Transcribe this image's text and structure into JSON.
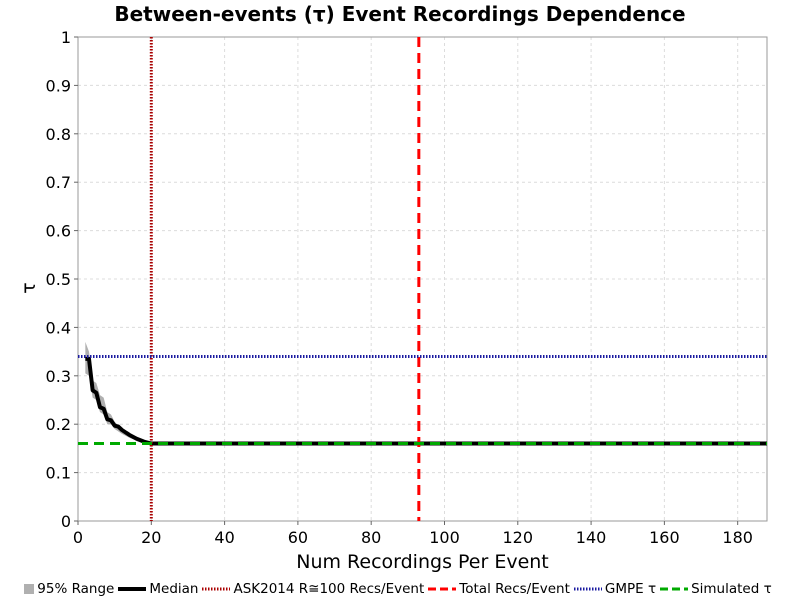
{
  "chart_data": {
    "type": "line",
    "title": "Between-events (τ) Event Recordings Dependence",
    "xlabel": "Num Recordings Per Event",
    "ylabel": "τ",
    "xlim": [
      0,
      188
    ],
    "ylim": [
      0,
      1
    ],
    "xticks": [
      0,
      20,
      40,
      60,
      80,
      100,
      120,
      140,
      160,
      180
    ],
    "yticks": [
      0,
      0.1,
      0.2,
      0.3,
      0.4,
      0.5,
      0.6,
      0.7,
      0.8,
      0.9,
      1
    ],
    "grid": true,
    "legend_position": "bottom",
    "series": [
      {
        "name": "95% Range",
        "kind": "band",
        "color": "#b0b0b0",
        "x": [
          2,
          3,
          4,
          5,
          6,
          7,
          8,
          9,
          10,
          12,
          14,
          16,
          18,
          20,
          30,
          60,
          93,
          120,
          188
        ],
        "lower": [
          0.305,
          0.3,
          0.255,
          0.25,
          0.225,
          0.22,
          0.2,
          0.2,
          0.19,
          0.18,
          0.172,
          0.166,
          0.161,
          0.158,
          0.158,
          0.158,
          0.158,
          0.158,
          0.158
        ],
        "upper": [
          0.37,
          0.35,
          0.29,
          0.285,
          0.26,
          0.255,
          0.225,
          0.22,
          0.205,
          0.19,
          0.18,
          0.172,
          0.166,
          0.162,
          0.162,
          0.162,
          0.162,
          0.162,
          0.162
        ]
      },
      {
        "name": "Median",
        "kind": "line",
        "color": "#000000",
        "x": [
          2,
          3,
          4,
          5,
          6,
          7,
          8,
          9,
          10,
          11,
          12,
          14,
          16,
          18,
          20,
          40,
          60,
          93,
          120,
          188
        ],
        "y": [
          0.335,
          0.335,
          0.27,
          0.265,
          0.235,
          0.232,
          0.21,
          0.208,
          0.197,
          0.195,
          0.188,
          0.178,
          0.17,
          0.164,
          0.16,
          0.16,
          0.16,
          0.16,
          0.16,
          0.16
        ]
      },
      {
        "name": "ASK2014 R≅100 Recs/Event",
        "kind": "vline",
        "color": "#aa0000",
        "x": 20
      },
      {
        "name": "Total Recs/Event",
        "kind": "vline",
        "color": "#ff0000",
        "x": 93
      },
      {
        "name": "GMPE τ",
        "kind": "hline",
        "color": "#1a1aa0",
        "y": 0.34
      },
      {
        "name": "Simulated τ",
        "kind": "hline",
        "color": "#00aa00",
        "y": 0.16
      }
    ]
  }
}
